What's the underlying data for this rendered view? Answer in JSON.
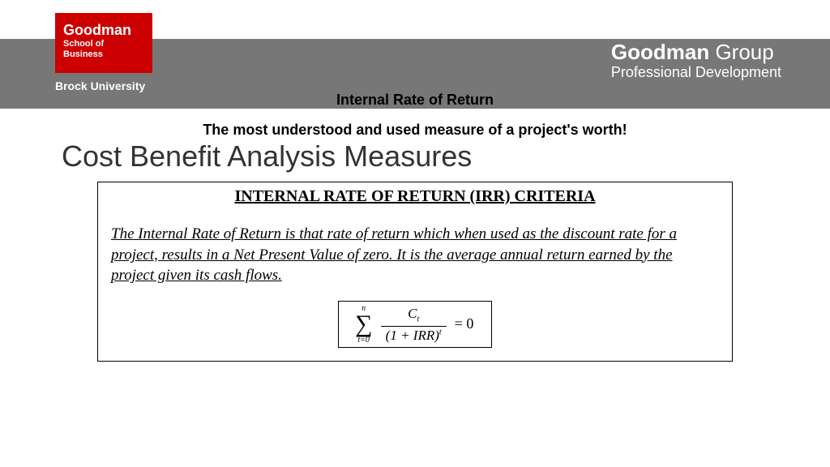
{
  "header": {
    "bar_color": "#777777",
    "logo": {
      "bg_color": "#cc0000",
      "name": "Goodman",
      "subline": "School of Business",
      "university": "Brock University"
    },
    "group": {
      "name_bold": "Goodman",
      "name_light": " Group",
      "subline": "Professional Development"
    }
  },
  "section_label": "Internal Rate of Return",
  "tagline": "The most understood and used measure of a project's worth!",
  "main_title": "Cost Benefit Analysis Measures",
  "box": {
    "title": "INTERNAL RATE OF RETURN (IRR) CRITERIA",
    "definition": "The Internal Rate of Return  is that rate of return which when used as the discount rate for a project, results in a Net Present Value of zero. It is the average annual return earned by the project given its cash flows.",
    "formula": {
      "upper": "n",
      "lower": "t=0",
      "numerator_var": "C",
      "numerator_sub": "t",
      "denominator": "(1 + IRR)",
      "denominator_sup": "t",
      "equals": "= 0"
    }
  }
}
